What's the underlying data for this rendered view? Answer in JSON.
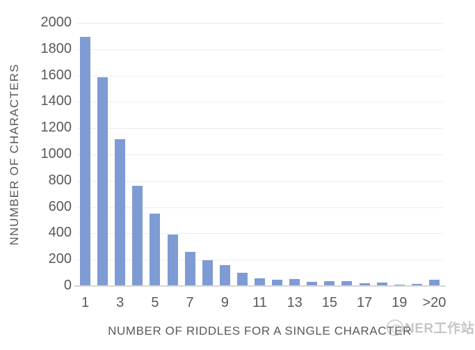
{
  "chart_data": {
    "type": "bar",
    "title": "",
    "xlabel": "NUMBER OF RIDDLES FOR A SINGLE CHARACTER",
    "ylabel": "NNUMBER OF CHARACTERS",
    "categories": [
      "1",
      "2",
      "3",
      "4",
      "5",
      "6",
      "7",
      "8",
      "9",
      "10",
      "11",
      "12",
      "13",
      "14",
      "15",
      "16",
      "17",
      "18",
      "19",
      "20",
      ">20"
    ],
    "values": [
      1890,
      1580,
      1110,
      755,
      545,
      385,
      255,
      190,
      155,
      95,
      55,
      45,
      50,
      25,
      30,
      30,
      15,
      20,
      8,
      10,
      45
    ],
    "x_ticks": {
      "labels": [
        "1",
        "3",
        "5",
        "7",
        "9",
        "11",
        "13",
        "15",
        "17",
        "19",
        ">20"
      ],
      "category_indices": [
        0,
        2,
        4,
        6,
        8,
        10,
        12,
        14,
        16,
        18,
        20
      ]
    },
    "ylim": [
      0,
      2000
    ],
    "y_tick_step": 200,
    "grid": true,
    "legend": "none",
    "bar_color": "#7e9bd3",
    "gridline_color": "#ededed",
    "axis_line_color": "#d6d6d6",
    "text_color": "#595959"
  },
  "watermark": {
    "text": "NER工作站",
    "logo": "round-badge-logo"
  }
}
